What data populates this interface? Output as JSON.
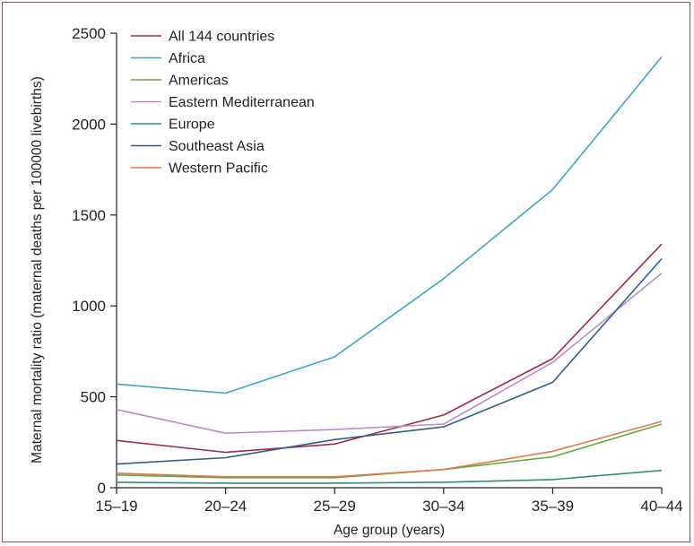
{
  "chart_data": {
    "type": "line",
    "title": "",
    "xlabel": "Age group (years)",
    "ylabel": "Maternal mortality ratio (maternal deaths per 100000 livebirths)",
    "categories": [
      "15–19",
      "20–24",
      "25–29",
      "30–34",
      "35–39",
      "40–44"
    ],
    "ylim": [
      0,
      2500
    ],
    "yticks": [
      0,
      500,
      1000,
      1500,
      2000,
      2500
    ],
    "legend_position": "top-left",
    "grid": false,
    "series": [
      {
        "name": "All 144 countries",
        "color": "#a3284f",
        "values": [
          260,
          195,
          240,
          400,
          710,
          1340
        ]
      },
      {
        "name": "Africa",
        "color": "#3aa6c8",
        "values": [
          570,
          520,
          720,
          1150,
          1640,
          2370
        ]
      },
      {
        "name": "Americas",
        "color": "#5aaa3c",
        "values": [
          70,
          55,
          55,
          100,
          170,
          350
        ]
      },
      {
        "name": "Eastern Mediterranean",
        "color": "#b88ccf",
        "values": [
          430,
          300,
          320,
          350,
          690,
          1180
        ]
      },
      {
        "name": "Europe",
        "color": "#2f8f7a",
        "values": [
          30,
          25,
          25,
          30,
          45,
          95
        ]
      },
      {
        "name": "Southeast Asia",
        "color": "#2e5e8e",
        "values": [
          130,
          165,
          265,
          335,
          580,
          1260
        ]
      },
      {
        "name": "Western Pacific",
        "color": "#e8744a",
        "values": [
          80,
          60,
          60,
          100,
          200,
          365
        ]
      }
    ]
  }
}
